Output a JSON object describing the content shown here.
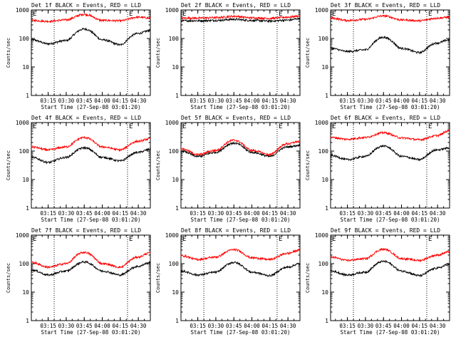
{
  "chart_data": [
    {
      "type": "line",
      "title": "Det 1f BLACK = Events, RED = LLD",
      "ylabel": "Counts/sec",
      "xlabel": "Start Time (27-Sep-08 03:01:20)",
      "yscale": "log",
      "ylim": [
        1,
        1000
      ],
      "xlim": [
        "03:01",
        "04:40"
      ],
      "vlines": [
        "03:20",
        "04:21"
      ],
      "grid": false,
      "marker_top": [
        "E",
        "E"
      ],
      "x_ticks": [
        "03:15",
        "03:30",
        "03:45",
        "04:00",
        "04:15",
        "04:30"
      ],
      "y_ticks": [
        "1",
        "10",
        "100",
        "1000"
      ],
      "series": [
        {
          "color": "#000000",
          "x": [
            "03:01",
            "03:15",
            "03:30",
            "03:45",
            "04:00",
            "04:15",
            "04:30",
            "04:40"
          ],
          "values": [
            90,
            65,
            85,
            215,
            90,
            60,
            150,
            190
          ]
        },
        {
          "color": "#ff0000",
          "x": [
            "03:01",
            "03:15",
            "03:30",
            "03:45",
            "04:00",
            "04:15",
            "04:30",
            "04:40"
          ],
          "values": [
            430,
            400,
            450,
            700,
            430,
            420,
            560,
            520
          ]
        }
      ]
    },
    {
      "type": "line",
      "title": "Det 2f BLACK = Events, RED = LLD",
      "ylabel": "Counts/sec",
      "xlabel": "Start Time (27-Sep-08 03:01:20)",
      "yscale": "log",
      "ylim": [
        1,
        1000
      ],
      "xlim": [
        "03:01",
        "04:40"
      ],
      "vlines": [
        "03:20",
        "04:21"
      ],
      "grid": false,
      "marker_top": [
        "E",
        "E"
      ],
      "x_ticks": [
        "03:15",
        "03:30",
        "03:45",
        "04:00",
        "04:15",
        "04:30"
      ],
      "y_ticks": [
        "1",
        "10",
        "100",
        "1000"
      ],
      "series": [
        {
          "color": "#000000",
          "x": [
            "03:01",
            "03:15",
            "03:30",
            "03:45",
            "04:00",
            "04:15",
            "04:30",
            "04:40"
          ],
          "values": [
            420,
            420,
            430,
            470,
            430,
            410,
            440,
            500
          ]
        },
        {
          "color": "#ff0000",
          "x": [
            "03:01",
            "03:15",
            "03:30",
            "03:45",
            "04:00",
            "04:15",
            "04:30",
            "04:40"
          ],
          "values": [
            520,
            520,
            540,
            600,
            530,
            510,
            560,
            620
          ]
        }
      ]
    },
    {
      "type": "line",
      "title": "Det 3f BLACK = Events, RED = LLD",
      "ylabel": "Counts/sec",
      "xlabel": "Start Time (27-Sep-08 03:01:20)",
      "yscale": "log",
      "ylim": [
        1,
        1000
      ],
      "xlim": [
        "03:01",
        "04:40"
      ],
      "vlines": [
        "03:20",
        "04:21"
      ],
      "grid": false,
      "marker_top": [
        "E",
        "E"
      ],
      "x_ticks": [
        "03:15",
        "03:30",
        "03:45",
        "04:00",
        "04:15",
        "04:30"
      ],
      "y_ticks": [
        "1",
        "10",
        "100",
        "1000"
      ],
      "series": [
        {
          "color": "#000000",
          "x": [
            "03:01",
            "03:15",
            "03:30",
            "03:45",
            "04:00",
            "04:15",
            "04:30",
            "04:40"
          ],
          "values": [
            45,
            35,
            40,
            110,
            45,
            32,
            70,
            90
          ]
        },
        {
          "color": "#ff0000",
          "x": [
            "03:01",
            "03:15",
            "03:30",
            "03:45",
            "04:00",
            "04:15",
            "04:30",
            "04:40"
          ],
          "values": [
            520,
            430,
            470,
            620,
            450,
            420,
            520,
            560
          ]
        }
      ]
    },
    {
      "type": "line",
      "title": "Det 4f BLACK = Events, RED = LLD",
      "ylabel": "Counts/sec",
      "xlabel": "Start Time (27-Sep-08 03:01:20)",
      "yscale": "log",
      "ylim": [
        1,
        1000
      ],
      "xlim": [
        "03:01",
        "04:40"
      ],
      "vlines": [
        "03:20",
        "04:21"
      ],
      "grid": false,
      "marker_top": [
        "E",
        "E"
      ],
      "x_ticks": [
        "03:15",
        "03:30",
        "03:45",
        "04:00",
        "04:15",
        "04:30"
      ],
      "y_ticks": [
        "1",
        "10",
        "100",
        "1000"
      ],
      "series": [
        {
          "color": "#000000",
          "x": [
            "03:01",
            "03:15",
            "03:30",
            "03:45",
            "04:00",
            "04:15",
            "04:30",
            "04:40"
          ],
          "values": [
            60,
            40,
            60,
            130,
            60,
            45,
            90,
            115
          ]
        },
        {
          "color": "#ff0000",
          "x": [
            "03:01",
            "03:15",
            "03:30",
            "03:45",
            "04:00",
            "04:15",
            "04:30",
            "04:40"
          ],
          "values": [
            140,
            110,
            140,
            300,
            140,
            110,
            220,
            270
          ]
        }
      ]
    },
    {
      "type": "line",
      "title": "Det 5f BLACK = Events, RED = LLD",
      "ylabel": "Counts/sec",
      "xlabel": "Start Time (27-Sep-08 03:01:20)",
      "yscale": "log",
      "ylim": [
        1,
        1000
      ],
      "xlim": [
        "03:01",
        "04:40"
      ],
      "vlines": [
        "03:20",
        "04:21"
      ],
      "grid": false,
      "marker_top": [
        "E",
        "E"
      ],
      "x_ticks": [
        "03:15",
        "03:30",
        "03:45",
        "04:00",
        "04:15",
        "04:30"
      ],
      "y_ticks": [
        "1",
        "10",
        "100",
        "1000"
      ],
      "series": [
        {
          "color": "#000000",
          "x": [
            "03:01",
            "03:15",
            "03:30",
            "03:45",
            "04:00",
            "04:15",
            "04:30",
            "04:40"
          ],
          "values": [
            100,
            65,
            90,
            190,
            90,
            65,
            140,
            160
          ]
        },
        {
          "color": "#ff0000",
          "x": [
            "03:01",
            "03:15",
            "03:30",
            "03:45",
            "04:00",
            "04:15",
            "04:30",
            "04:40"
          ],
          "values": [
            120,
            75,
            105,
            240,
            105,
            75,
            180,
            220
          ]
        }
      ]
    },
    {
      "type": "line",
      "title": "Det 6f BLACK = Events, RED = LLD",
      "ylabel": "Counts/sec",
      "xlabel": "Start Time (27-Sep-08 03:01:20)",
      "yscale": "log",
      "ylim": [
        1,
        1000
      ],
      "xlim": [
        "03:01",
        "04:40"
      ],
      "vlines": [
        "03:20",
        "04:21"
      ],
      "grid": false,
      "marker_top": [
        "E",
        "E"
      ],
      "x_ticks": [
        "03:15",
        "03:30",
        "03:45",
        "04:00",
        "04:15",
        "04:30"
      ],
      "y_ticks": [
        "1",
        "10",
        "100",
        "1000"
      ],
      "series": [
        {
          "color": "#000000",
          "x": [
            "03:01",
            "03:15",
            "03:30",
            "03:45",
            "04:00",
            "04:15",
            "04:30",
            "04:40"
          ],
          "values": [
            70,
            50,
            65,
            150,
            65,
            50,
            110,
            130
          ]
        },
        {
          "color": "#ff0000",
          "x": [
            "03:01",
            "03:15",
            "03:30",
            "03:45",
            "04:00",
            "04:15",
            "04:30",
            "04:40"
          ],
          "values": [
            300,
            260,
            300,
            440,
            290,
            250,
            350,
            520
          ]
        }
      ]
    },
    {
      "type": "line",
      "title": "Det 7f BLACK = Events, RED = LLD",
      "ylabel": "Counts/sec",
      "xlabel": "Start Time (27-Sep-08 03:01:20)",
      "yscale": "log",
      "ylim": [
        1,
        1000
      ],
      "xlim": [
        "03:01",
        "04:40"
      ],
      "vlines": [
        "03:20",
        "04:21"
      ],
      "grid": false,
      "marker_top": [
        "E",
        "E"
      ],
      "x_ticks": [
        "03:15",
        "03:30",
        "03:45",
        "04:00",
        "04:15",
        "04:30"
      ],
      "y_ticks": [
        "1",
        "10",
        "100",
        "1000"
      ],
      "series": [
        {
          "color": "#000000",
          "x": [
            "03:01",
            "03:15",
            "03:30",
            "03:45",
            "04:00",
            "04:15",
            "04:30",
            "04:40"
          ],
          "values": [
            60,
            40,
            55,
            115,
            55,
            40,
            80,
            110
          ]
        },
        {
          "color": "#ff0000",
          "x": [
            "03:01",
            "03:15",
            "03:30",
            "03:45",
            "04:00",
            "04:15",
            "04:30",
            "04:40"
          ],
          "values": [
            110,
            75,
            100,
            250,
            100,
            75,
            170,
            240
          ]
        }
      ]
    },
    {
      "type": "line",
      "title": "Det 8f BLACK = Events, RED = LLD",
      "ylabel": "Counts/sec",
      "xlabel": "Start Time (27-Sep-08 03:01:20)",
      "yscale": "log",
      "ylim": [
        1,
        1000
      ],
      "xlim": [
        "03:01",
        "04:40"
      ],
      "vlines": [
        "03:20",
        "04:21"
      ],
      "grid": false,
      "marker_top": [
        "E",
        "E"
      ],
      "x_ticks": [
        "03:15",
        "03:30",
        "03:45",
        "04:00",
        "04:15",
        "04:30"
      ],
      "y_ticks": [
        "1",
        "10",
        "100",
        "1000"
      ],
      "series": [
        {
          "color": "#000000",
          "x": [
            "03:01",
            "03:15",
            "03:30",
            "03:45",
            "04:00",
            "04:15",
            "04:30",
            "04:40"
          ],
          "values": [
            55,
            40,
            50,
            110,
            50,
            38,
            75,
            100
          ]
        },
        {
          "color": "#ff0000",
          "x": [
            "03:01",
            "03:15",
            "03:30",
            "03:45",
            "04:00",
            "04:15",
            "04:30",
            "04:40"
          ],
          "values": [
            190,
            140,
            170,
            310,
            160,
            140,
            230,
            300
          ]
        }
      ]
    },
    {
      "type": "line",
      "title": "Det 9f BLACK = Events, RED = LLD",
      "ylabel": "Counts/sec",
      "xlabel": "Start Time (27-Sep-08 03:01:20)",
      "yscale": "log",
      "ylim": [
        1,
        1000
      ],
      "xlim": [
        "03:01",
        "04:40"
      ],
      "vlines": [
        "03:20",
        "04:21"
      ],
      "grid": false,
      "marker_top": [
        "E",
        "E"
      ],
      "x_ticks": [
        "03:15",
        "03:30",
        "03:45",
        "04:00",
        "04:15",
        "04:30"
      ],
      "y_ticks": [
        "1",
        "10",
        "100",
        "1000"
      ],
      "series": [
        {
          "color": "#000000",
          "x": [
            "03:01",
            "03:15",
            "03:30",
            "03:45",
            "04:00",
            "04:15",
            "04:30",
            "04:40"
          ],
          "values": [
            55,
            40,
            50,
            120,
            55,
            38,
            70,
            95
          ]
        },
        {
          "color": "#ff0000",
          "x": [
            "03:01",
            "03:15",
            "03:30",
            "03:45",
            "04:00",
            "04:15",
            "04:30",
            "04:40"
          ],
          "values": [
            170,
            130,
            150,
            320,
            150,
            130,
            200,
            260
          ]
        }
      ]
    }
  ]
}
